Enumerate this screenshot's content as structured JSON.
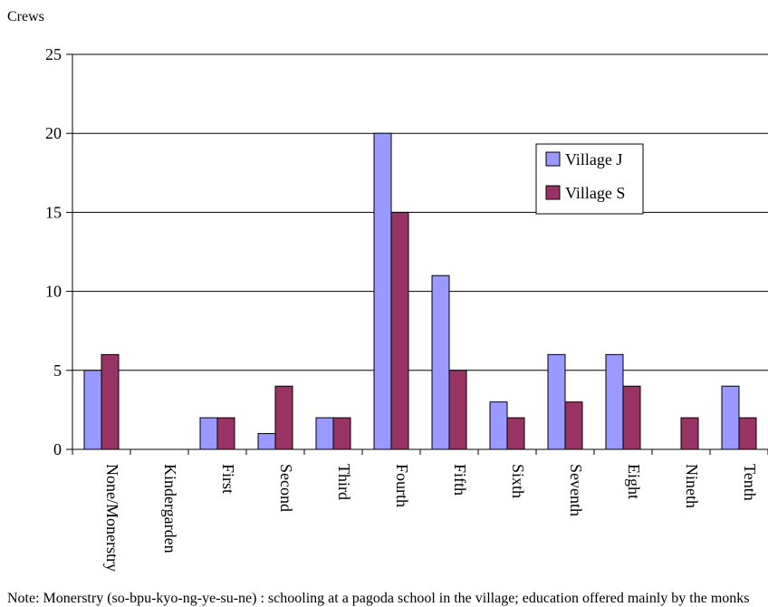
{
  "chart_data": {
    "type": "bar",
    "title": "",
    "ylabel": "Crews",
    "xlabel": "",
    "ylim": [
      0,
      25
    ],
    "yticks": [
      0,
      5,
      10,
      15,
      20,
      25
    ],
    "grid": true,
    "legend_position": "right",
    "categories": [
      "None/Monerstry",
      "Kindergarden",
      "First",
      "Second",
      "Third",
      "Fourth",
      "Fifth",
      "Sixth",
      "Seventh",
      "Eight",
      "Nineth",
      "Tenth"
    ],
    "series": [
      {
        "name": "Village J",
        "color": "#9999ff",
        "values": [
          5,
          0,
          2,
          1,
          2,
          20,
          11,
          3,
          6,
          6,
          0,
          4
        ]
      },
      {
        "name": "Village S",
        "color": "#993366",
        "values": [
          6,
          0,
          2,
          4,
          2,
          15,
          5,
          2,
          3,
          4,
          2,
          2
        ]
      }
    ]
  },
  "note": "Note: Monerstry (so-bpu-kyo-ng-ye-su-ne) : schooling at a pagoda school in the village; education offered mainly by the monks"
}
